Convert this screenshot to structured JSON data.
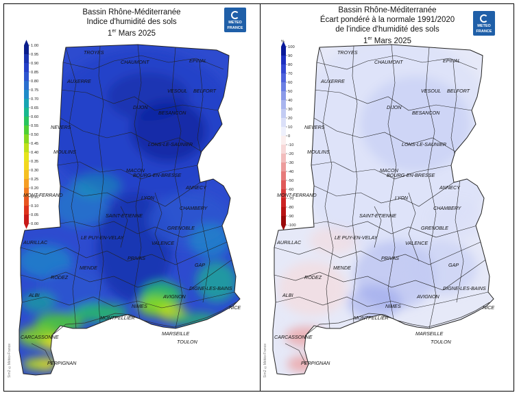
{
  "left": {
    "title1": "Bassin Rhône-Méditerranée",
    "title2": "Indice d'humidité des sols",
    "title3_pre": "1",
    "title3_sup": "er",
    "title3_post": " Mars 2025",
    "legend_ticks": [
      "1.00",
      "0.95",
      "0.90",
      "0.85",
      "0.80",
      "0.75",
      "0.70",
      "0.65",
      "0.60",
      "0.55",
      "0.50",
      "0.45",
      "0.40",
      "0.35",
      "0.30",
      "0.25",
      "0.20",
      "0.15",
      "0.10",
      "0.05",
      "0.00"
    ],
    "legend_colors": [
      "#0a1e8c",
      "#1a33b0",
      "#2440c8",
      "#2d55cf",
      "#2a6fcf",
      "#1f8bc9",
      "#17a5b3",
      "#18b88f",
      "#28c45e",
      "#4fcf34",
      "#86d81f",
      "#bfe01a",
      "#e6e41c",
      "#f2d71f",
      "#f5bf22",
      "#f59e24",
      "#f07a23",
      "#e85520",
      "#dd321c",
      "#c81a18"
    ]
  },
  "right": {
    "title1": "Bassin Rhône-Méditerranée",
    "title2": "Écart pondéré à la normale 1991/2020",
    "title3": "de l'indice d'humidité des sols",
    "title4_pre": "1",
    "title4_sup": "er",
    "title4_post": " Mars 2025",
    "legend_unit": "%",
    "legend_ticks": [
      "100",
      "90",
      "80",
      "70",
      "60",
      "50",
      "40",
      "30",
      "20",
      "10",
      "0",
      "-10",
      "-20",
      "-30",
      "-40",
      "-50",
      "-60",
      "-70",
      "-80",
      "-90",
      "-100"
    ],
    "legend_colors": [
      "#0a1a9a",
      "#1d2fc0",
      "#3347d2",
      "#4e62dc",
      "#6b7fe3",
      "#8b9ae8",
      "#a9b5ee",
      "#c3ccf3",
      "#dbe0f8",
      "#eef0fc",
      "#fbeeee",
      "#f7d8d8",
      "#f2bcbc",
      "#ec9c9c",
      "#e67b7b",
      "#e05a5a",
      "#d83c3c",
      "#cc2424",
      "#b81414",
      "#9a0a0a"
    ]
  },
  "logo": {
    "line1": "METEO",
    "line2": "FRANCE"
  },
  "credit": "Sim2 ©Météo-France",
  "cities": [
    {
      "name": "TROYES"
    },
    {
      "name": "CHAUMONT"
    },
    {
      "name": "EPINAL"
    },
    {
      "name": "AUXERRE"
    },
    {
      "name": "VESOUL"
    },
    {
      "name": "BELFORT"
    },
    {
      "name": "DIJON"
    },
    {
      "name": "BESANCON"
    },
    {
      "name": "NEVERS"
    },
    {
      "name": "LONS-LE-SAUNIER"
    },
    {
      "name": "MOULINS"
    },
    {
      "name": "MACON"
    },
    {
      "name": "BOURG-EN-BRESSE"
    },
    {
      "name": "ANNECY"
    },
    {
      "name": "MONT-FERRAND"
    },
    {
      "name": "LYON"
    },
    {
      "name": "CHAMBERY"
    },
    {
      "name": "SAINT-ETIENNE"
    },
    {
      "name": "GRENOBLE"
    },
    {
      "name": "LE PUY-EN-VELAY"
    },
    {
      "name": "VALENCE"
    },
    {
      "name": "AURILLAC"
    },
    {
      "name": "PRIVAS"
    },
    {
      "name": "GAP"
    },
    {
      "name": "MENDE"
    },
    {
      "name": "RODEZ"
    },
    {
      "name": "DIGNE-LES-BAINS"
    },
    {
      "name": "ALBI"
    },
    {
      "name": "AVIGNON"
    },
    {
      "name": "NIMES"
    },
    {
      "name": "NICE"
    },
    {
      "name": "MONTPELLIER"
    },
    {
      "name": "MARSEILLE"
    },
    {
      "name": "TOULON"
    },
    {
      "name": "CARCASSONNE"
    },
    {
      "name": "PERPIGNAN"
    }
  ]
}
